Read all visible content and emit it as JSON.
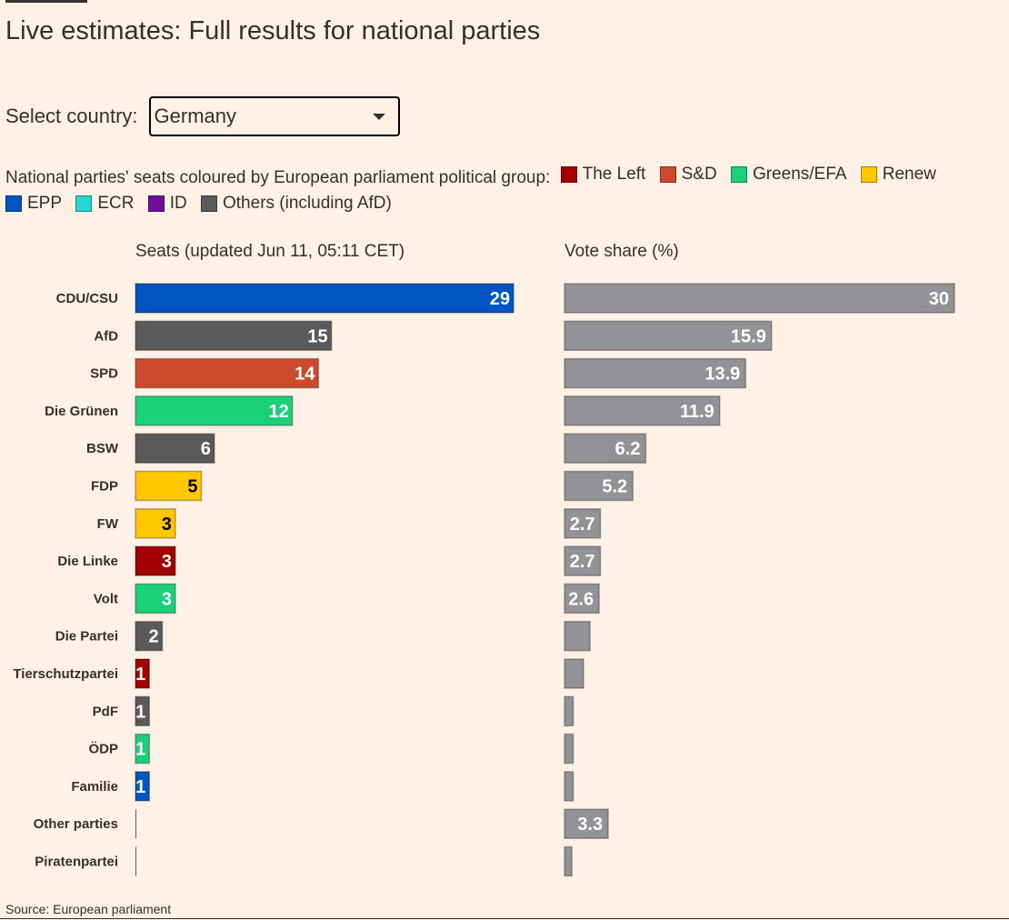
{
  "title": "Live estimates: Full results for national parties",
  "select": {
    "label": "Select country:",
    "value": "Germany"
  },
  "legend": {
    "intro": "National parties' seats coloured by European parliament political group:",
    "items": [
      {
        "label": "The Left",
        "color": "#a30000"
      },
      {
        "label": "S&D",
        "color": "#cc4b2e"
      },
      {
        "label": "Greens/EFA",
        "color": "#1ad17a"
      },
      {
        "label": "Renew",
        "color": "#ffc700"
      },
      {
        "label": "EPP",
        "color": "#0055c2"
      },
      {
        "label": "ECR",
        "color": "#26d6d6"
      },
      {
        "label": "ID",
        "color": "#6b0f9c"
      },
      {
        "label": "Others (including AfD)",
        "color": "#5a5a5a"
      }
    ]
  },
  "seats_title": "Seats (updated Jun 11, 05:11 CET)",
  "vote_title": "Vote share (%)",
  "source": "Source: European parliament",
  "chart_data": {
    "type": "bar",
    "categories": [
      "CDU/CSU",
      "AfD",
      "SPD",
      "Die Grünen",
      "BSW",
      "FDP",
      "FW",
      "Die Linke",
      "Volt",
      "Die Partei",
      "Tierschutzpartei",
      "PdF",
      "ÖDP",
      "Familie",
      "Other parties",
      "Piratenpartei"
    ],
    "series": [
      {
        "name": "Seats",
        "values": [
          29,
          15,
          14,
          12,
          6,
          5,
          3,
          3,
          3,
          2,
          1,
          1,
          1,
          1,
          0,
          0
        ],
        "labels": [
          "29",
          "15",
          "14",
          "12",
          "6",
          "5",
          "3",
          "3",
          "3",
          "2",
          "1",
          "1",
          "1",
          "1",
          "",
          ""
        ],
        "groups": [
          "EPP",
          "Others (including AfD)",
          "S&D",
          "Greens/EFA",
          "Others (including AfD)",
          "Renew",
          "Renew",
          "The Left",
          "Greens/EFA",
          "Others (including AfD)",
          "The Left",
          "Others (including AfD)",
          "Greens/EFA",
          "EPP",
          "Others (including AfD)",
          "Others (including AfD)"
        ],
        "xlim": [
          0,
          29
        ]
      },
      {
        "name": "Vote share (%)",
        "values": [
          30,
          15.9,
          13.9,
          11.9,
          6.2,
          5.2,
          2.7,
          2.7,
          2.6,
          1.9,
          1.4,
          0.6,
          0.6,
          0.6,
          3.3,
          0.5
        ],
        "labels": [
          "30",
          "15.9",
          "13.9",
          "11.9",
          "6.2",
          "5.2",
          "2.7",
          "2.7",
          "2.6",
          "",
          "",
          "",
          "",
          "",
          "3.3",
          ""
        ],
        "color": "#939296",
        "xlim": [
          0,
          30
        ]
      }
    ]
  }
}
